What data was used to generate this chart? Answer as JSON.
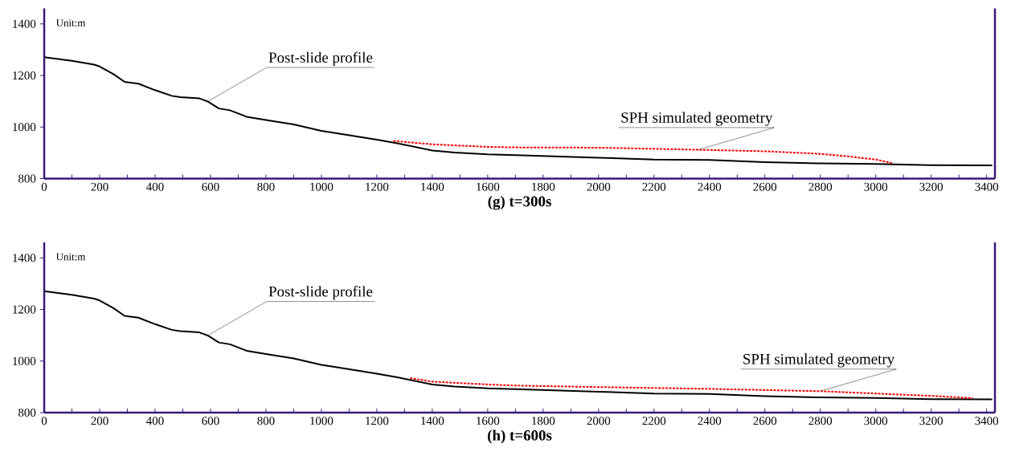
{
  "chart_data": [
    {
      "type": "line",
      "xlabel": "(g)  t=300s",
      "xlim": [
        0,
        3430
      ],
      "ylim": [
        800,
        1460
      ],
      "xticks": [
        0,
        200,
        400,
        600,
        800,
        1000,
        1200,
        1400,
        1600,
        1800,
        2000,
        2200,
        2400,
        2600,
        2800,
        3000,
        3200,
        3400
      ],
      "yticks": [
        800,
        1000,
        1200,
        1400
      ],
      "grid": false,
      "series": [
        {
          "color": "#000000",
          "line_style": "solid",
          "x": [
            0,
            100,
            180,
            200,
            250,
            290,
            340,
            400,
            460,
            490,
            560,
            590,
            630,
            670,
            730,
            800,
            900,
            1000,
            1060,
            1200,
            1270,
            1400,
            1480,
            1600,
            1700,
            2000,
            2200,
            2400,
            2600,
            2800,
            3000,
            3200,
            3420
          ],
          "values": [
            1271,
            1257,
            1242,
            1235,
            1205,
            1175,
            1168,
            1143,
            1121,
            1116,
            1111,
            1099,
            1072,
            1065,
            1040,
            1027,
            1010,
            985,
            975,
            951,
            938,
            909,
            901,
            894,
            891,
            881,
            874,
            872,
            864,
            859,
            857,
            852,
            851
          ]
        },
        {
          "color": "#ff0000",
          "line_style": "dashed",
          "x": [
            1260,
            1400,
            1600,
            1700,
            2000,
            2400,
            2600,
            2800,
            2900,
            3000,
            3060
          ],
          "values": [
            946,
            933,
            923,
            921,
            920,
            911,
            906,
            896,
            886,
            874,
            860
          ]
        }
      ],
      "annotations": [
        "Unit:m",
        {
          "text": "Post-slide profile",
          "x": 590,
          "y": 1099
        },
        {
          "text": "SPH simulated geometry",
          "x": 2360,
          "y": 912
        }
      ]
    },
    {
      "type": "line",
      "xlabel": "(h) t=600s",
      "xlim": [
        0,
        3430
      ],
      "ylim": [
        800,
        1460
      ],
      "xticks": [
        0,
        200,
        400,
        600,
        800,
        1000,
        1200,
        1400,
        1600,
        1800,
        2000,
        2200,
        2400,
        2600,
        2800,
        3000,
        3200,
        3400
      ],
      "yticks": [
        800,
        1000,
        1200,
        1400
      ],
      "grid": false,
      "series": [
        {
          "color": "#000000",
          "line_style": "solid",
          "x": [
            0,
            100,
            180,
            200,
            250,
            290,
            340,
            400,
            460,
            490,
            560,
            590,
            630,
            670,
            730,
            800,
            900,
            1000,
            1060,
            1200,
            1270,
            1400,
            1480,
            1600,
            1700,
            2000,
            2200,
            2400,
            2600,
            2800,
            3000,
            3200,
            3420
          ],
          "values": [
            1271,
            1257,
            1242,
            1235,
            1205,
            1175,
            1168,
            1143,
            1121,
            1116,
            1111,
            1099,
            1072,
            1065,
            1040,
            1027,
            1010,
            985,
            975,
            951,
            938,
            909,
            901,
            894,
            891,
            881,
            874,
            872,
            864,
            859,
            857,
            852,
            851
          ]
        },
        {
          "color": "#ff0000",
          "line_style": "dashed",
          "x": [
            1320,
            1400,
            1600,
            1700,
            2000,
            2400,
            2800,
            3000,
            3200,
            3350
          ],
          "values": [
            934,
            920,
            909,
            905,
            899,
            892,
            883,
            874,
            865,
            856
          ]
        }
      ],
      "annotations": [
        "Unit:m",
        {
          "text": "Post-slide profile",
          "x": 590,
          "y": 1099
        },
        {
          "text": "SPH simulated geometry",
          "x": 2800,
          "y": 883
        }
      ]
    }
  ]
}
